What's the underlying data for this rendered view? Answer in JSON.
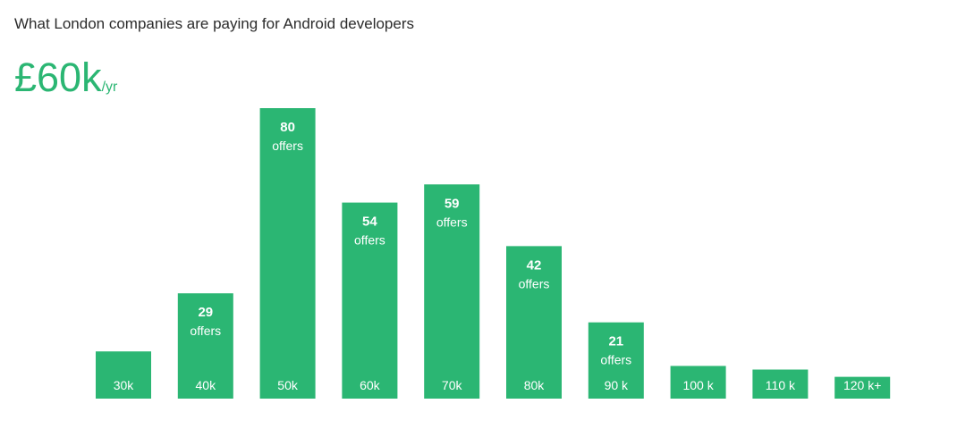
{
  "header": {
    "title": "What London companies are paying for Android developers",
    "headline_value": "£60k",
    "headline_unit": "/yr"
  },
  "colors": {
    "accent": "#2bb673"
  },
  "chart_data": {
    "type": "bar",
    "categories": [
      "30k",
      "40k",
      "50k",
      "60k",
      "70k",
      "80k",
      "90 k",
      "100 k",
      "110 k",
      "120 k+"
    ],
    "values": [
      13,
      29,
      80,
      54,
      59,
      42,
      21,
      9,
      8,
      6
    ],
    "value_labels": [
      "",
      "29",
      "80",
      "54",
      "59",
      "42",
      "21",
      "",
      "",
      ""
    ],
    "value_label_suffix": "offers",
    "ylim": [
      0,
      80
    ],
    "grid": false,
    "legend": "none"
  }
}
